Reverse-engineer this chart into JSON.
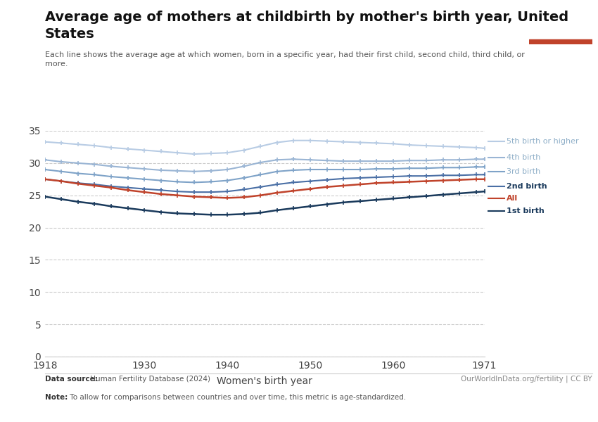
{
  "title": "Average age of mothers at childbirth by mother's birth year, United\nStates",
  "subtitle": "Each line shows the average age at which women, born in a specific year, had their first child, second child, third child, or\nmore.",
  "xlabel": "Women's birth year",
  "datasource_bold": "Data source:",
  "datasource_rest": " Human Fertility Database (2024)",
  "copyright": "OurWorldInData.org/fertility | CC BY",
  "note_bold": "Note:",
  "note_rest": " To allow for comparisons between countries and over time, this metric is age-standardized.",
  "xlim": [
    1918,
    1971
  ],
  "ylim": [
    0,
    35
  ],
  "yticks": [
    0,
    5,
    10,
    15,
    20,
    25,
    30,
    35
  ],
  "xticks": [
    1918,
    1930,
    1940,
    1950,
    1960,
    1971
  ],
  "background_color": "#ffffff",
  "series": [
    {
      "label": "5th birth or higher",
      "color": "#b8cce4",
      "linewidth": 1.5,
      "marker": "+",
      "markersize": 5,
      "x": [
        1918,
        1920,
        1922,
        1924,
        1926,
        1928,
        1930,
        1932,
        1934,
        1936,
        1938,
        1940,
        1942,
        1944,
        1946,
        1948,
        1950,
        1952,
        1954,
        1956,
        1958,
        1960,
        1962,
        1964,
        1966,
        1968,
        1970,
        1971
      ],
      "y": [
        33.3,
        33.1,
        32.9,
        32.7,
        32.4,
        32.2,
        32.0,
        31.8,
        31.6,
        31.4,
        31.5,
        31.6,
        32.0,
        32.6,
        33.2,
        33.5,
        33.5,
        33.4,
        33.3,
        33.2,
        33.1,
        33.0,
        32.8,
        32.7,
        32.6,
        32.5,
        32.4,
        32.3
      ]
    },
    {
      "label": "4th birth",
      "color": "#9ab5d4",
      "linewidth": 1.5,
      "marker": "+",
      "markersize": 5,
      "x": [
        1918,
        1920,
        1922,
        1924,
        1926,
        1928,
        1930,
        1932,
        1934,
        1936,
        1938,
        1940,
        1942,
        1944,
        1946,
        1948,
        1950,
        1952,
        1954,
        1956,
        1958,
        1960,
        1962,
        1964,
        1966,
        1968,
        1970,
        1971
      ],
      "y": [
        30.5,
        30.2,
        30.0,
        29.8,
        29.5,
        29.3,
        29.1,
        28.9,
        28.8,
        28.7,
        28.8,
        29.0,
        29.5,
        30.1,
        30.5,
        30.6,
        30.5,
        30.4,
        30.3,
        30.3,
        30.3,
        30.3,
        30.4,
        30.4,
        30.5,
        30.5,
        30.6,
        30.6
      ]
    },
    {
      "label": "3rd birth",
      "color": "#7fa3c8",
      "linewidth": 1.5,
      "marker": "+",
      "markersize": 5,
      "x": [
        1918,
        1920,
        1922,
        1924,
        1926,
        1928,
        1930,
        1932,
        1934,
        1936,
        1938,
        1940,
        1942,
        1944,
        1946,
        1948,
        1950,
        1952,
        1954,
        1956,
        1958,
        1960,
        1962,
        1964,
        1966,
        1968,
        1970,
        1971
      ],
      "y": [
        29.0,
        28.7,
        28.4,
        28.2,
        27.9,
        27.7,
        27.5,
        27.3,
        27.1,
        27.0,
        27.1,
        27.3,
        27.7,
        28.2,
        28.7,
        28.9,
        29.0,
        29.0,
        29.0,
        29.0,
        29.1,
        29.1,
        29.2,
        29.2,
        29.3,
        29.3,
        29.4,
        29.4
      ]
    },
    {
      "label": "2nd birth",
      "color": "#4a6fa5",
      "linewidth": 1.5,
      "marker": "+",
      "markersize": 5,
      "x": [
        1918,
        1920,
        1922,
        1924,
        1926,
        1928,
        1930,
        1932,
        1934,
        1936,
        1938,
        1940,
        1942,
        1944,
        1946,
        1948,
        1950,
        1952,
        1954,
        1956,
        1958,
        1960,
        1962,
        1964,
        1966,
        1968,
        1970,
        1971
      ],
      "y": [
        27.5,
        27.2,
        26.9,
        26.7,
        26.4,
        26.2,
        26.0,
        25.8,
        25.6,
        25.5,
        25.5,
        25.6,
        25.9,
        26.3,
        26.7,
        27.0,
        27.2,
        27.4,
        27.6,
        27.7,
        27.8,
        27.9,
        28.0,
        28.0,
        28.1,
        28.1,
        28.2,
        28.2
      ]
    },
    {
      "label": "All",
      "color": "#c0432b",
      "linewidth": 1.8,
      "marker": "+",
      "markersize": 5,
      "x": [
        1918,
        1920,
        1922,
        1924,
        1926,
        1928,
        1930,
        1932,
        1934,
        1936,
        1938,
        1940,
        1942,
        1944,
        1946,
        1948,
        1950,
        1952,
        1954,
        1956,
        1958,
        1960,
        1962,
        1964,
        1966,
        1968,
        1970,
        1971
      ],
      "y": [
        27.5,
        27.2,
        26.8,
        26.5,
        26.2,
        25.8,
        25.5,
        25.2,
        25.0,
        24.8,
        24.7,
        24.6,
        24.7,
        25.0,
        25.4,
        25.7,
        26.0,
        26.3,
        26.5,
        26.7,
        26.9,
        27.0,
        27.1,
        27.2,
        27.3,
        27.4,
        27.5,
        27.5
      ]
    },
    {
      "label": "1st birth",
      "color": "#1a3a5c",
      "linewidth": 1.8,
      "marker": "+",
      "markersize": 5,
      "x": [
        1918,
        1920,
        1922,
        1924,
        1926,
        1928,
        1930,
        1932,
        1934,
        1936,
        1938,
        1940,
        1942,
        1944,
        1946,
        1948,
        1950,
        1952,
        1954,
        1956,
        1958,
        1960,
        1962,
        1964,
        1966,
        1968,
        1970,
        1971
      ],
      "y": [
        24.8,
        24.4,
        24.0,
        23.7,
        23.3,
        23.0,
        22.7,
        22.4,
        22.2,
        22.1,
        22.0,
        22.0,
        22.1,
        22.3,
        22.7,
        23.0,
        23.3,
        23.6,
        23.9,
        24.1,
        24.3,
        24.5,
        24.7,
        24.9,
        25.1,
        25.3,
        25.5,
        25.6
      ]
    }
  ],
  "owid_box_color": "#1a3a5c",
  "owid_box_accent": "#c0432b",
  "legend_label_colors": {
    "5th birth or higher": "#8fafc8",
    "4th birth": "#8fafc8",
    "3rd birth": "#8fafc8",
    "2nd birth": "#1a3a5c",
    "All": "#c0432b",
    "1st birth": "#1a3a5c"
  }
}
